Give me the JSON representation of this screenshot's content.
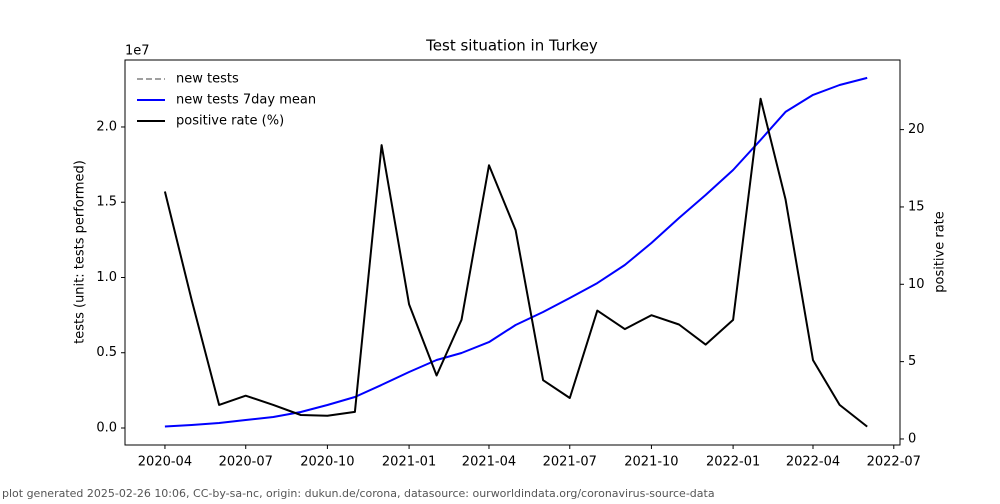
{
  "chart_data": {
    "type": "line",
    "title": "Test situation in Turkey",
    "ylabel": "tests (unit: tests performed)",
    "y2label": "positive rate",
    "y_offset_label": "1e7",
    "footer": "plot generated 2025-02-26 10:06, CC-by-sa-nc, origin: dukun.de/corona, datasource: ourworldindata.org/coronavirus-source-data",
    "legend": "upper left",
    "x": [
      "2020-04",
      "2020-05",
      "2020-06",
      "2020-07",
      "2020-08",
      "2020-09",
      "2020-10",
      "2020-11",
      "2020-12",
      "2021-01",
      "2021-02",
      "2021-03",
      "2021-04",
      "2021-05",
      "2021-06",
      "2021-07",
      "2021-08",
      "2021-09",
      "2021-10",
      "2021-11",
      "2021-12",
      "2022-01",
      "2022-02",
      "2022-03",
      "2022-04",
      "2022-05",
      "2022-06"
    ],
    "xlim": [
      "2020-02-16",
      "2022-07-08"
    ],
    "xticks": [
      "2020-04",
      "2020-07",
      "2020-10",
      "2021-01",
      "2021-04",
      "2021-07",
      "2021-10",
      "2022-01",
      "2022-04",
      "2022-07"
    ],
    "ylim": [
      -1130000,
      24450000
    ],
    "yticks": [
      {
        "value": 0,
        "label": "0.0"
      },
      {
        "value": 5000000,
        "label": "0.5"
      },
      {
        "value": 10000000,
        "label": "1.0"
      },
      {
        "value": 15000000,
        "label": "1.5"
      },
      {
        "value": 20000000,
        "label": "2.0"
      }
    ],
    "y2lim": [
      -0.39,
      24.5
    ],
    "y2ticks": [
      0,
      5,
      10,
      15,
      20
    ],
    "series": [
      {
        "name": "new tests",
        "color": "#808080",
        "dash": true,
        "values": [
          null,
          null,
          null,
          null,
          null,
          null,
          null,
          null,
          null,
          null,
          null,
          null,
          null,
          null,
          null,
          null,
          null,
          null,
          null,
          null,
          null,
          null,
          null,
          null,
          null,
          null,
          null
        ]
      },
      {
        "name": "new tests 7day mean",
        "color": "#0000ff",
        "values": [
          100000,
          200000,
          330000,
          530000,
          730000,
          1060000,
          1530000,
          2060000,
          2860000,
          3720000,
          4520000,
          4980000,
          5710000,
          6840000,
          7710000,
          8640000,
          9630000,
          10830000,
          12290000,
          13950000,
          15480000,
          17140000,
          19140000,
          21000000,
          22130000,
          22790000,
          23260000
        ]
      },
      {
        "name": "positive rate (%)",
        "color": "#000000",
        "axis": "y2",
        "values": [
          16,
          9,
          2.2,
          2.8,
          2.2,
          1.55,
          1.5,
          1.75,
          19,
          8.7,
          4.1,
          7.7,
          17.7,
          13.5,
          3.8,
          2.65,
          8.3,
          7.1,
          8,
          7.4,
          6.1,
          7.7,
          22,
          15.5,
          5.1,
          2.2,
          0.8
        ]
      }
    ]
  }
}
